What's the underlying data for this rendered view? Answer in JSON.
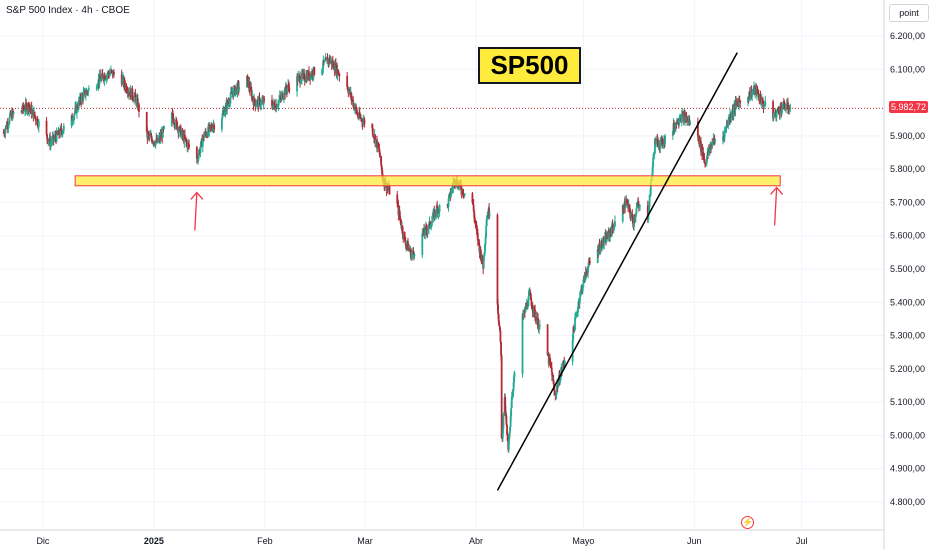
{
  "header": {
    "title": "S&P 500 Index · 4h · CBOE"
  },
  "price_scale": {
    "unit_button": "point",
    "current_price_label": "5.982,72"
  },
  "annotation": {
    "title_box": "SP500"
  },
  "colors": {
    "up": "#22ab94",
    "down": "#b22833",
    "support_fill": "#ffeb3b",
    "support_border": "#f23645",
    "arrow": "#f23645",
    "trendline": "#000000",
    "grid": "#f0f3fa"
  },
  "icons": {
    "alert": "lightning-icon"
  },
  "chart_data": {
    "type": "candlestick",
    "title": "S&P 500 Index · 4h · CBOE",
    "y_ticks": [
      {
        "value": 6200,
        "label": "6.200,00"
      },
      {
        "value": 6100,
        "label": "6.100,00"
      },
      {
        "value": 5900,
        "label": "5.900,00"
      },
      {
        "value": 5800,
        "label": "5.800,00"
      },
      {
        "value": 5700,
        "label": "5.700,00"
      },
      {
        "value": 5600,
        "label": "5.600,00"
      },
      {
        "value": 5500,
        "label": "5.500,00"
      },
      {
        "value": 5400,
        "label": "5.400,00"
      },
      {
        "value": 5300,
        "label": "5.300,00"
      },
      {
        "value": 5200,
        "label": "5.200,00"
      },
      {
        "value": 5100,
        "label": "5.100,00"
      },
      {
        "value": 5000,
        "label": "5.000,00"
      },
      {
        "value": 4900,
        "label": "4.900,00"
      },
      {
        "value": 4800,
        "label": "4.800,00"
      }
    ],
    "x_ticks": [
      {
        "label": "Dic",
        "date": "2024-12-01",
        "bold": false
      },
      {
        "label": "2025",
        "date": "2025-01-01",
        "bold": true
      },
      {
        "label": "Feb",
        "date": "2025-02-01",
        "bold": false
      },
      {
        "label": "Mar",
        "date": "2025-03-01",
        "bold": false
      },
      {
        "label": "Abr",
        "date": "2025-04-01",
        "bold": false
      },
      {
        "label": "Mayo",
        "date": "2025-05-01",
        "bold": false
      },
      {
        "label": "Jun",
        "date": "2025-06-01",
        "bold": false
      },
      {
        "label": "Jul",
        "date": "2025-07-01",
        "bold": false
      }
    ],
    "last_price": 5982.72,
    "support_zone": {
      "from": "2024-12-10",
      "to": "2025-06-25",
      "low": 5750,
      "high": 5780
    },
    "trendline": {
      "start": {
        "date": "2025-04-07",
        "value": 4835
      },
      "end": {
        "date": "2025-06-13",
        "value": 6150
      }
    },
    "arrows": [
      {
        "date": "2025-01-13",
        "value": 5730
      },
      {
        "date": "2025-06-24",
        "value": 5745
      }
    ],
    "path": [
      [
        "2024-11-20",
        5910
      ],
      [
        "2024-11-22",
        5960
      ],
      [
        "2024-11-27",
        5990
      ],
      [
        "2024-12-03",
        5880
      ],
      [
        "2024-12-05",
        5900
      ],
      [
        "2024-12-09",
        5950
      ],
      [
        "2024-12-12",
        6020
      ],
      [
        "2024-12-16",
        6060
      ],
      [
        "2024-12-18",
        6080
      ],
      [
        "2024-12-20",
        6090
      ],
      [
        "2024-12-23",
        6070
      ],
      [
        "2024-12-24",
        6050
      ],
      [
        "2024-12-27",
        6010
      ],
      [
        "2024-12-30",
        5900
      ],
      [
        "2025-01-02",
        5880
      ],
      [
        "2025-01-06",
        5960
      ],
      [
        "2025-01-08",
        5920
      ],
      [
        "2025-01-10",
        5880
      ],
      [
        "2025-01-13",
        5830
      ],
      [
        "2025-01-15",
        5900
      ],
      [
        "2025-01-20",
        5960
      ],
      [
        "2025-01-23",
        6030
      ],
      [
        "2025-01-27",
        6070
      ],
      [
        "2025-01-29",
        6000
      ],
      [
        "2025-02-01",
        6000
      ],
      [
        "2025-02-04",
        5990
      ],
      [
        "2025-02-07",
        6040
      ],
      [
        "2025-02-10",
        6070
      ],
      [
        "2025-02-13",
        6080
      ],
      [
        "2025-02-17",
        6110
      ],
      [
        "2025-02-19",
        6130
      ],
      [
        "2025-02-21",
        6100
      ],
      [
        "2025-02-24",
        6050
      ],
      [
        "2025-02-27",
        5960
      ],
      [
        "2025-03-03",
        5920
      ],
      [
        "2025-03-05",
        5850
      ],
      [
        "2025-03-06",
        5770
      ],
      [
        "2025-03-10",
        5690
      ],
      [
        "2025-03-12",
        5590
      ],
      [
        "2025-03-14",
        5540
      ],
      [
        "2025-03-17",
        5600
      ],
      [
        "2025-03-19",
        5630
      ],
      [
        "2025-03-21",
        5680
      ],
      [
        "2025-03-24",
        5690
      ],
      [
        "2025-03-26",
        5770
      ],
      [
        "2025-03-28",
        5740
      ],
      [
        "2025-03-31",
        5700
      ],
      [
        "2025-04-01",
        5620
      ],
      [
        "2025-04-02",
        5560
      ],
      [
        "2025-04-03",
        5510
      ],
      [
        "2025-04-04",
        5660
      ],
      [
        "2025-04-05",
        5680
      ],
      [
        "2025-04-07",
        5400
      ],
      [
        "2025-04-08",
        5250
      ],
      [
        "2025-04-08",
        4960
      ],
      [
        "2025-04-09",
        5100
      ],
      [
        "2025-04-10",
        4950
      ],
      [
        "2025-04-11",
        5120
      ],
      [
        "2025-04-14",
        5350
      ],
      [
        "2025-04-16",
        5420
      ],
      [
        "2025-04-17",
        5380
      ],
      [
        "2025-04-20",
        5280
      ],
      [
        "2025-04-22",
        5200
      ],
      [
        "2025-04-23",
        5120
      ],
      [
        "2025-04-25",
        5200
      ],
      [
        "2025-04-28",
        5300
      ],
      [
        "2025-04-30",
        5420
      ],
      [
        "2025-05-02",
        5500
      ],
      [
        "2025-05-05",
        5560
      ],
      [
        "2025-05-08",
        5600
      ],
      [
        "2025-05-12",
        5680
      ],
      [
        "2025-05-13",
        5700
      ],
      [
        "2025-05-15",
        5640
      ],
      [
        "2025-05-16",
        5690
      ],
      [
        "2025-05-19",
        5660
      ],
      [
        "2025-05-21",
        5880
      ],
      [
        "2025-05-23",
        5880
      ],
      [
        "2025-05-26",
        5920
      ],
      [
        "2025-05-28",
        5960
      ],
      [
        "2025-05-30",
        5950
      ],
      [
        "2025-06-02",
        5900
      ],
      [
        "2025-06-04",
        5820
      ],
      [
        "2025-06-05",
        5850
      ],
      [
        "2025-06-06",
        5880
      ],
      [
        "2025-06-09",
        5900
      ],
      [
        "2025-06-11",
        5960
      ],
      [
        "2025-06-13",
        6000
      ],
      [
        "2025-06-16",
        6020
      ],
      [
        "2025-06-18",
        6040
      ],
      [
        "2025-06-20",
        6000
      ],
      [
        "2025-06-23",
        5960
      ],
      [
        "2025-06-26",
        5990
      ],
      [
        "2025-06-28",
        5982
      ]
    ]
  }
}
